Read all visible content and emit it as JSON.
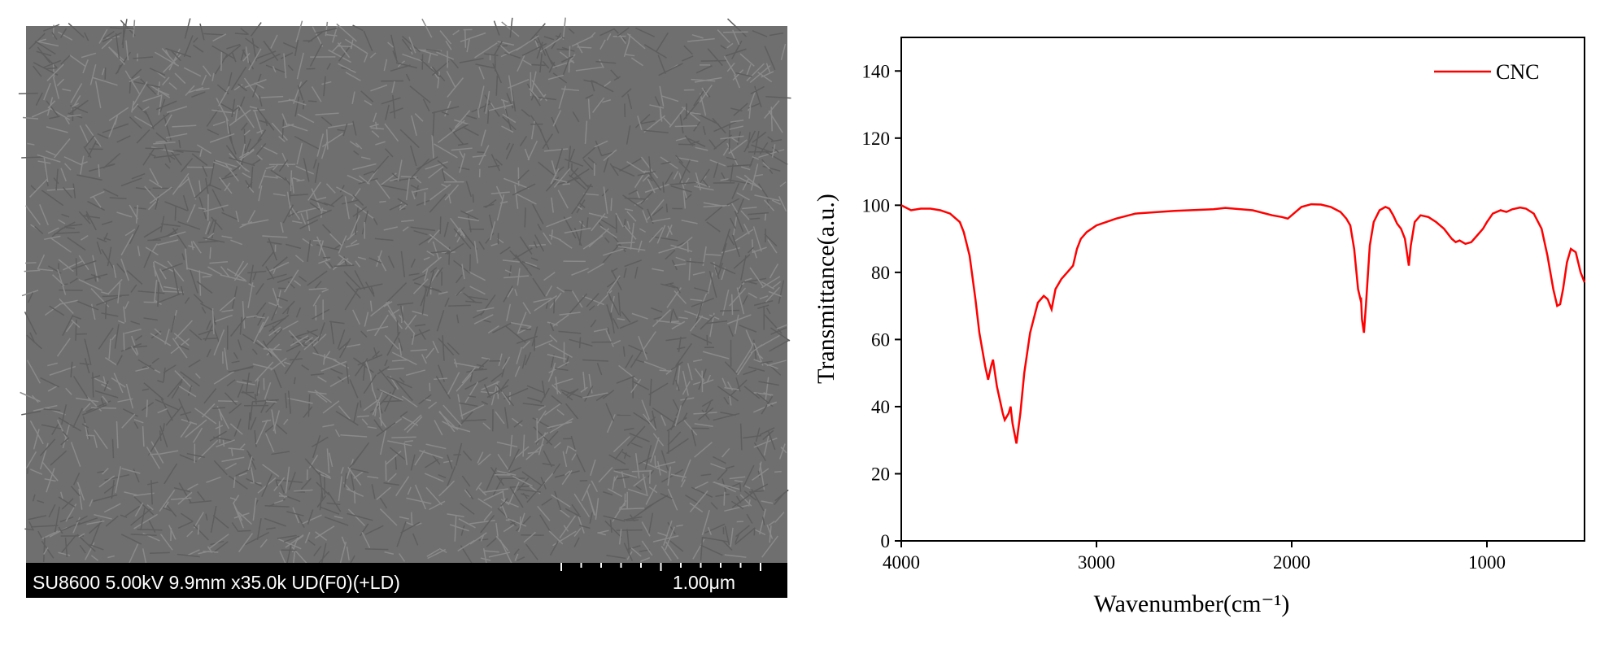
{
  "sem": {
    "info": "SU8600 5.00kV 9.9mm x35.0k UD(F0)(+LD)",
    "scale": "1.00μm"
  },
  "chart_data": {
    "type": "line",
    "xlabel": "Wavenumber(cm⁻¹)",
    "ylabel": "Transmittance(a.u.)",
    "xlim": [
      4000,
      500
    ],
    "xticks": [
      4000,
      3000,
      2000,
      1000
    ],
    "ylim": [
      0,
      150
    ],
    "yticks": [
      0,
      20,
      40,
      60,
      80,
      100,
      120,
      140
    ],
    "legend": "upper right",
    "x": [
      4000,
      3950,
      3900,
      3850,
      3800,
      3750,
      3700,
      3680,
      3650,
      3620,
      3600,
      3570,
      3555,
      3540,
      3530,
      3510,
      3480,
      3470,
      3450,
      3440,
      3430,
      3410,
      3390,
      3370,
      3340,
      3300,
      3270,
      3250,
      3230,
      3210,
      3180,
      3150,
      3120,
      3100,
      3080,
      3050,
      3000,
      2900,
      2800,
      2600,
      2400,
      2340,
      2200,
      2100,
      2050,
      2020,
      2000,
      1950,
      1900,
      1850,
      1800,
      1750,
      1720,
      1700,
      1680,
      1660,
      1648,
      1645,
      1640,
      1630,
      1620,
      1600,
      1580,
      1550,
      1520,
      1500,
      1480,
      1460,
      1440,
      1420,
      1410,
      1400,
      1390,
      1370,
      1340,
      1300,
      1260,
      1220,
      1180,
      1160,
      1140,
      1110,
      1080,
      1050,
      1020,
      1000,
      970,
      930,
      900,
      870,
      830,
      800,
      760,
      720,
      690,
      660,
      640,
      625,
      610,
      590,
      570,
      545,
      520,
      500
    ],
    "series": [
      {
        "name": "CNC",
        "color": "#ff0000",
        "values": [
          100,
          98.5,
          99,
          99,
          98.5,
          97.5,
          95,
          92,
          85,
          72,
          62,
          52,
          48,
          52,
          54,
          46,
          38,
          36,
          38,
          40,
          35,
          29,
          38,
          50,
          62,
          71,
          73,
          72,
          69,
          75,
          78,
          80,
          82,
          87,
          90,
          92,
          94,
          96,
          97.5,
          98.3,
          98.8,
          99.2,
          98.5,
          97,
          96.5,
          96,
          97,
          99.5,
          100.3,
          100.2,
          99.5,
          98,
          96,
          94,
          87,
          75,
          72,
          72.5,
          66,
          62,
          70,
          88,
          95,
          98.5,
          99.5,
          99,
          97,
          94.5,
          93,
          90,
          86,
          82,
          88,
          95,
          97,
          96.5,
          95,
          93,
          90,
          89,
          89.5,
          88.5,
          89,
          91,
          93,
          95,
          97.5,
          98.5,
          98,
          98.8,
          99.3,
          99,
          97.5,
          93,
          85,
          75,
          70,
          70.5,
          75,
          83,
          87,
          86,
          80,
          77
        ]
      }
    ]
  }
}
